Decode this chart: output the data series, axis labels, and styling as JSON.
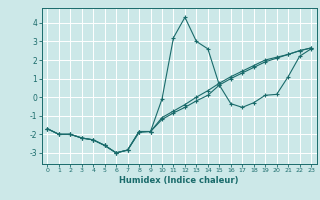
{
  "xlabel": "Humidex (Indice chaleur)",
  "background_color": "#cce8e8",
  "grid_color": "#ffffff",
  "line_color": "#1a6b6b",
  "xlim": [
    -0.5,
    23.5
  ],
  "ylim": [
    -3.6,
    4.8
  ],
  "xticks": [
    0,
    1,
    2,
    3,
    4,
    5,
    6,
    7,
    8,
    9,
    10,
    11,
    12,
    13,
    14,
    15,
    16,
    17,
    18,
    19,
    20,
    21,
    22,
    23
  ],
  "yticks": [
    -3,
    -2,
    -1,
    0,
    1,
    2,
    3,
    4
  ],
  "lines": [
    {
      "x": [
        0,
        1,
        2,
        3,
        4,
        5,
        6,
        7,
        8,
        9,
        10,
        11,
        12,
        13,
        14,
        15,
        16,
        17,
        18,
        19,
        20,
        21,
        22,
        23
      ],
      "y": [
        -1.7,
        -2.0,
        -2.0,
        -2.2,
        -2.3,
        -2.6,
        -3.0,
        -2.85,
        -1.9,
        -1.85,
        -0.1,
        3.2,
        4.3,
        3.0,
        2.6,
        0.65,
        -0.35,
        -0.55,
        -0.3,
        0.1,
        0.15,
        1.1,
        2.2,
        2.6
      ]
    },
    {
      "x": [
        0,
        1,
        2,
        3,
        4,
        5,
        6,
        7,
        8,
        9,
        10,
        11,
        12,
        13,
        14,
        15,
        16,
        17,
        18,
        19,
        20,
        21,
        22,
        23
      ],
      "y": [
        -1.7,
        -2.0,
        -2.0,
        -2.2,
        -2.3,
        -2.6,
        -3.0,
        -2.85,
        -1.85,
        -1.85,
        -1.2,
        -0.85,
        -0.55,
        -0.2,
        0.1,
        0.65,
        1.0,
        1.3,
        1.6,
        1.9,
        2.1,
        2.3,
        2.5,
        2.65
      ]
    },
    {
      "x": [
        0,
        1,
        2,
        3,
        4,
        5,
        6,
        7,
        8,
        9,
        10,
        11,
        12,
        13,
        14,
        15,
        16,
        17,
        18,
        19,
        20,
        21,
        22,
        23
      ],
      "y": [
        -1.7,
        -2.0,
        -2.0,
        -2.2,
        -2.3,
        -2.6,
        -3.0,
        -2.85,
        -1.85,
        -1.85,
        -1.1,
        -0.75,
        -0.4,
        0.0,
        0.35,
        0.75,
        1.1,
        1.4,
        1.7,
        2.0,
        2.15,
        2.3,
        2.5,
        2.65
      ]
    }
  ]
}
